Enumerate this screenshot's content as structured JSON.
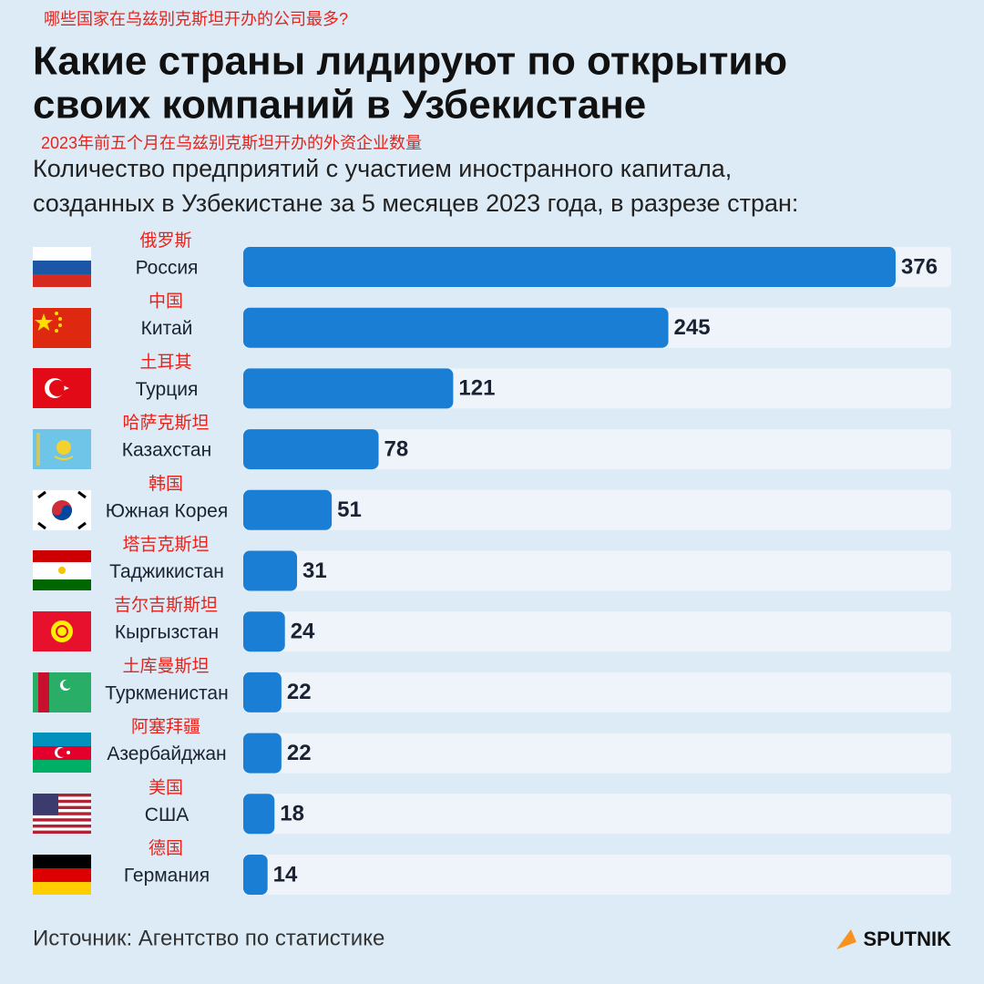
{
  "chart_data": {
    "type": "bar",
    "orientation": "horizontal",
    "title_note": "哪些国家在乌兹别克斯坦开办的公司最多?",
    "title": [
      "Какие страны лидируют по открытию",
      "своих компаний в Узбекистане"
    ],
    "subtitle_note": "2023年前五个月在乌兹别克斯坦开办的外资企业数量",
    "subtitle": [
      "Количество предприятий с участием иностранного капитала,",
      "созданных в Узбекистане за 5 месяцев 2023 года, в разрезе стран:"
    ],
    "categories": [
      "Россия",
      "Китай",
      "Турция",
      "Казахстан",
      "Южная Корея",
      "Таджикистан",
      "Кыргызстан",
      "Туркменистан",
      "Азербайджан",
      "США",
      "Германия"
    ],
    "category_notes": [
      "俄罗斯",
      "中国",
      "土耳其",
      "哈萨克斯坦",
      "韩国",
      "塔吉克斯坦",
      "吉尔吉斯斯坦",
      "土库曼斯坦",
      "阿塞拜疆",
      "美国",
      "德国"
    ],
    "values": [
      376,
      245,
      121,
      78,
      51,
      31,
      24,
      22,
      22,
      18,
      14
    ],
    "color": "#1a7fd4",
    "source": "Источник: Агентство по статистике",
    "brand": "SPUTNIK"
  }
}
